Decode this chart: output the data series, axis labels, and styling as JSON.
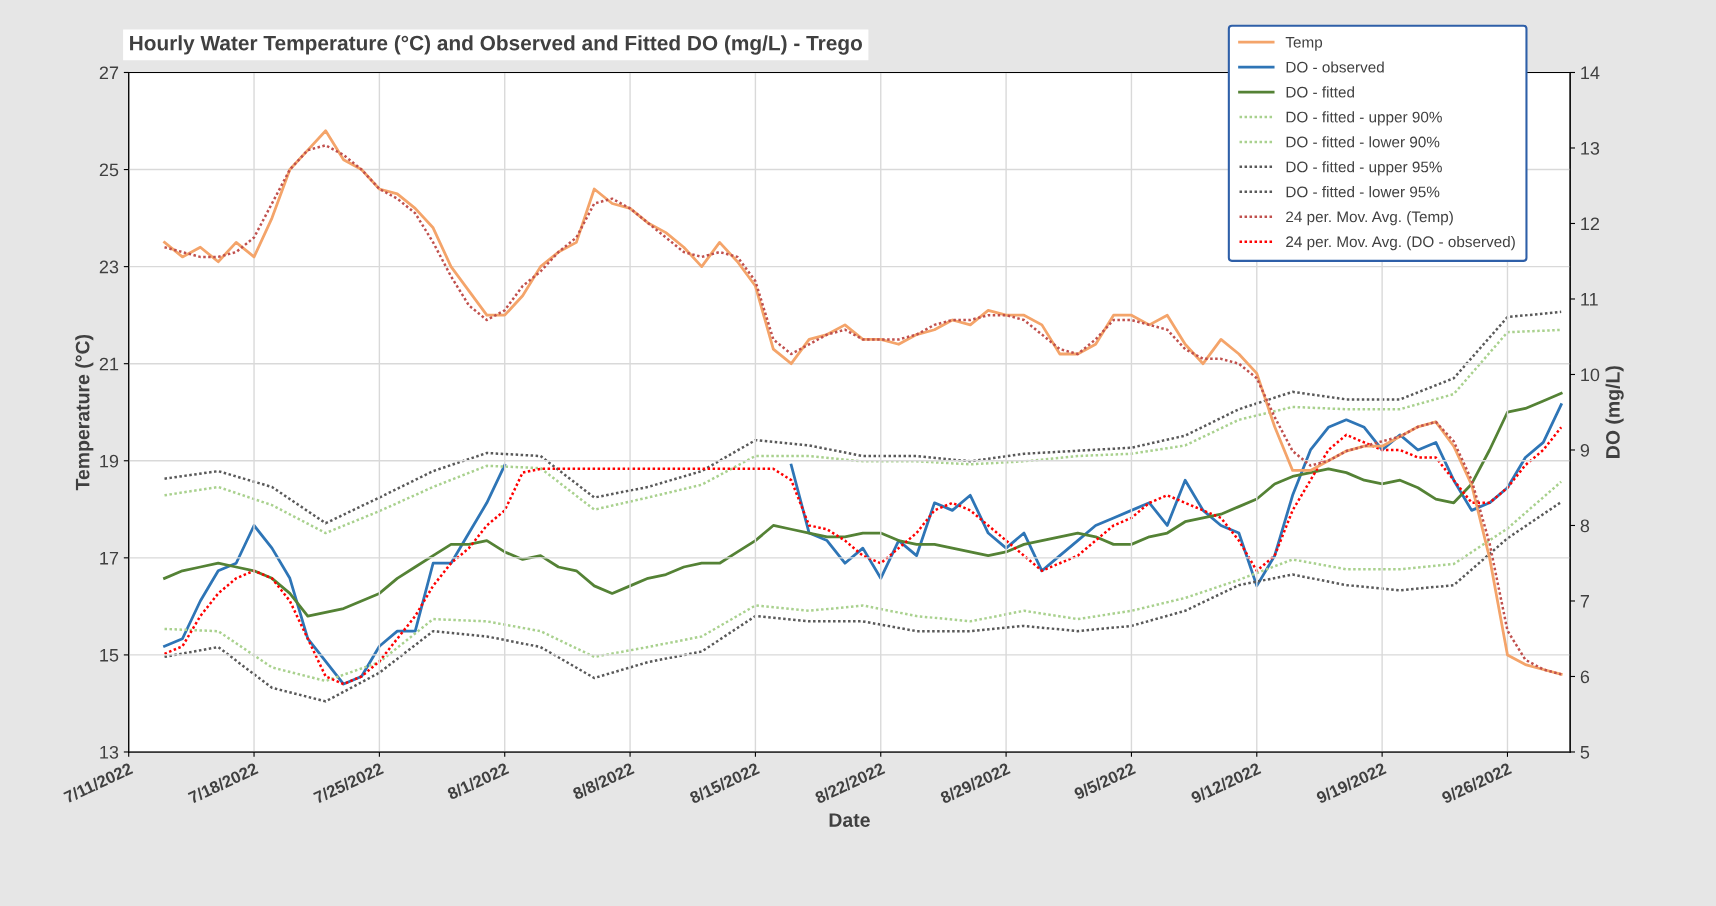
{
  "chart_data": {
    "type": "line",
    "title": "Hourly Water Temperature (°C) and Observed and Fitted DO (mg/L) - Trego",
    "xlabel": "Date",
    "ylabel": "Temperature (°C)",
    "y2label": "DO (mg/L)",
    "x": [
      "2022-07-13",
      "2022-07-14",
      "2022-07-15",
      "2022-07-16",
      "2022-07-17",
      "2022-07-18",
      "2022-07-19",
      "2022-07-20",
      "2022-07-21",
      "2022-07-22",
      "2022-07-23",
      "2022-07-24",
      "2022-07-25",
      "2022-07-26",
      "2022-07-27",
      "2022-07-28",
      "2022-07-29",
      "2022-07-30",
      "2022-07-31",
      "2022-08-01",
      "2022-08-02",
      "2022-08-03",
      "2022-08-04",
      "2022-08-05",
      "2022-08-06",
      "2022-08-07",
      "2022-08-08",
      "2022-08-09",
      "2022-08-10",
      "2022-08-11",
      "2022-08-12",
      "2022-08-13",
      "2022-08-14",
      "2022-08-15",
      "2022-08-16",
      "2022-08-17",
      "2022-08-18",
      "2022-08-19",
      "2022-08-20",
      "2022-08-21",
      "2022-08-22",
      "2022-08-23",
      "2022-08-24",
      "2022-08-25",
      "2022-08-26",
      "2022-08-27",
      "2022-08-28",
      "2022-08-29",
      "2022-08-30",
      "2022-08-31",
      "2022-09-01",
      "2022-09-02",
      "2022-09-03",
      "2022-09-04",
      "2022-09-05",
      "2022-09-06",
      "2022-09-07",
      "2022-09-08",
      "2022-09-09",
      "2022-09-10",
      "2022-09-11",
      "2022-09-12",
      "2022-09-13",
      "2022-09-14",
      "2022-09-15",
      "2022-09-16",
      "2022-09-17",
      "2022-09-18",
      "2022-09-19",
      "2022-09-20",
      "2022-09-21",
      "2022-09-22",
      "2022-09-23",
      "2022-09-24",
      "2022-09-25",
      "2022-09-26",
      "2022-09-27",
      "2022-09-28",
      "2022-09-29"
    ],
    "series": [
      {
        "name": "Temp",
        "color": "#f4a46a",
        "line_style": "solid",
        "values": [
          23.5,
          23.2,
          23.4,
          23.1,
          23.5,
          23.2,
          24.0,
          25.0,
          25.4,
          25.8,
          25.2,
          25.0,
          24.6,
          24.5,
          24.2,
          23.8,
          23.0,
          22.5,
          22.0,
          22.0,
          22.4,
          23.0,
          23.3,
          23.5,
          24.6,
          24.3,
          24.2,
          23.9,
          23.7,
          23.4,
          23.0,
          23.5,
          23.1,
          22.6,
          21.3,
          21.0,
          21.5,
          21.6,
          21.8,
          21.5,
          21.5,
          21.4,
          21.6,
          21.7,
          21.9,
          21.8,
          22.1,
          22.0,
          22.0,
          21.8,
          21.2,
          21.2,
          21.4,
          22.0,
          22.0,
          21.8,
          22.0,
          21.4,
          21.0,
          21.5,
          21.2,
          20.8,
          19.7,
          18.8,
          18.8,
          19.0,
          19.2,
          19.3,
          19.3,
          19.5,
          19.7,
          19.8,
          19.3,
          18.5,
          17.0,
          15.0,
          14.8,
          14.7,
          14.6
        ]
      },
      {
        "name": "DO - observed",
        "color": "#2e75b6",
        "line_style": "solid",
        "axis": "y2",
        "values": [
          6.4,
          6.5,
          7.0,
          7.4,
          7.5,
          8.0,
          7.7,
          7.3,
          6.5,
          6.2,
          5.9,
          6.0,
          6.4,
          6.6,
          6.6,
          7.5,
          7.5,
          7.9,
          8.3,
          8.8,
          null,
          null,
          null,
          null,
          null,
          null,
          null,
          null,
          null,
          null,
          null,
          null,
          null,
          null,
          null,
          8.8,
          7.9,
          7.8,
          7.5,
          7.7,
          7.3,
          7.8,
          7.6,
          8.3,
          8.2,
          8.4,
          7.9,
          7.7,
          7.9,
          7.4,
          7.6,
          7.8,
          8.0,
          8.1,
          8.2,
          8.3,
          8.0,
          8.6,
          8.2,
          8.0,
          7.9,
          7.2,
          7.6,
          8.4,
          9.0,
          9.3,
          9.4,
          9.3,
          9.0,
          9.2,
          9.0,
          9.1,
          8.6,
          8.2,
          8.3,
          8.5,
          8.9,
          9.1,
          9.6
        ]
      },
      {
        "name": "DO - fitted",
        "color": "#548235",
        "line_style": "solid",
        "axis": "y2",
        "values": [
          7.3,
          7.4,
          7.45,
          7.5,
          7.45,
          7.4,
          7.3,
          7.1,
          6.8,
          6.85,
          6.9,
          7.0,
          7.1,
          7.3,
          7.45,
          7.6,
          7.75,
          7.75,
          7.8,
          7.65,
          7.55,
          7.6,
          7.45,
          7.4,
          7.2,
          7.1,
          7.2,
          7.3,
          7.35,
          7.45,
          7.5,
          7.5,
          7.65,
          7.8,
          8.0,
          7.95,
          7.9,
          7.85,
          7.85,
          7.9,
          7.9,
          7.8,
          7.75,
          7.75,
          7.7,
          7.65,
          7.6,
          7.65,
          7.75,
          7.8,
          7.85,
          7.9,
          7.85,
          7.75,
          7.75,
          7.85,
          7.9,
          8.05,
          8.1,
          8.15,
          8.25,
          8.35,
          8.55,
          8.65,
          8.7,
          8.75,
          8.7,
          8.6,
          8.55,
          8.6,
          8.5,
          8.35,
          8.3,
          8.55,
          9.0,
          9.5,
          9.55,
          9.65,
          9.75
        ]
      },
      {
        "name": "DO - fitted - upper 90%",
        "color": "#a9d18e",
        "line_style": "dotted",
        "axis": "y2",
        "x": [
          "2022-07-13",
          "2022-07-16",
          "2022-07-19",
          "2022-07-22",
          "2022-07-25",
          "2022-07-28",
          "2022-07-31",
          "2022-08-03",
          "2022-08-06",
          "2022-08-09",
          "2022-08-12",
          "2022-08-15",
          "2022-08-18",
          "2022-08-21",
          "2022-08-24",
          "2022-08-27",
          "2022-08-30",
          "2022-09-02",
          "2022-09-05",
          "2022-09-08",
          "2022-09-11",
          "2022-09-14",
          "2022-09-17",
          "2022-09-20",
          "2022-09-23",
          "2022-09-26",
          "2022-09-29"
        ],
        "values": [
          8.4,
          8.51,
          8.27,
          7.9,
          8.19,
          8.51,
          8.79,
          8.76,
          8.21,
          8.37,
          8.54,
          8.92,
          8.92,
          8.85,
          8.85,
          8.81,
          8.85,
          8.92,
          8.95,
          9.06,
          9.4,
          9.57,
          9.54,
          9.54,
          9.74,
          10.56,
          10.59
        ]
      },
      {
        "name": "DO - fitted - lower 90%",
        "color": "#a9d18e",
        "line_style": "dotted",
        "axis": "y2",
        "x": [
          "2022-07-13",
          "2022-07-16",
          "2022-07-19",
          "2022-07-22",
          "2022-07-25",
          "2022-07-28",
          "2022-07-31",
          "2022-08-03",
          "2022-08-06",
          "2022-08-09",
          "2022-08-12",
          "2022-08-15",
          "2022-08-18",
          "2022-08-21",
          "2022-08-24",
          "2022-08-27",
          "2022-08-30",
          "2022-09-02",
          "2022-09-05",
          "2022-09-08",
          "2022-09-11",
          "2022-09-14",
          "2022-09-17",
          "2022-09-20",
          "2022-09-23",
          "2022-09-26",
          "2022-09-29"
        ],
        "values": [
          6.63,
          6.6,
          6.12,
          5.94,
          6.19,
          6.76,
          6.73,
          6.6,
          6.26,
          6.39,
          6.53,
          6.94,
          6.87,
          6.94,
          6.8,
          6.73,
          6.87,
          6.76,
          6.87,
          7.04,
          7.28,
          7.55,
          7.42,
          7.42,
          7.49,
          7.96,
          8.58
        ]
      },
      {
        "name": "DO - fitted - upper 95%",
        "color": "#595959",
        "line_style": "dotted",
        "axis": "y2",
        "x": [
          "2022-07-13",
          "2022-07-16",
          "2022-07-19",
          "2022-07-22",
          "2022-07-25",
          "2022-07-28",
          "2022-07-31",
          "2022-08-03",
          "2022-08-06",
          "2022-08-09",
          "2022-08-12",
          "2022-08-15",
          "2022-08-18",
          "2022-08-21",
          "2022-08-24",
          "2022-08-27",
          "2022-08-30",
          "2022-09-02",
          "2022-09-05",
          "2022-09-08",
          "2022-09-11",
          "2022-09-14",
          "2022-09-17",
          "2022-09-20",
          "2022-09-23",
          "2022-09-26",
          "2022-09-29"
        ],
        "values": [
          8.62,
          8.72,
          8.51,
          8.03,
          8.37,
          8.72,
          8.96,
          8.92,
          8.37,
          8.51,
          8.72,
          9.13,
          9.06,
          8.92,
          8.92,
          8.85,
          8.95,
          8.99,
          9.03,
          9.19,
          9.54,
          9.77,
          9.67,
          9.67,
          9.95,
          10.76,
          10.83
        ]
      },
      {
        "name": "DO - fitted - lower 95%",
        "color": "#595959",
        "line_style": "dotted",
        "axis": "y2",
        "x": [
          "2022-07-13",
          "2022-07-16",
          "2022-07-19",
          "2022-07-22",
          "2022-07-25",
          "2022-07-28",
          "2022-07-31",
          "2022-08-03",
          "2022-08-06",
          "2022-08-09",
          "2022-08-12",
          "2022-08-15",
          "2022-08-18",
          "2022-08-21",
          "2022-08-24",
          "2022-08-27",
          "2022-08-30",
          "2022-09-02",
          "2022-09-05",
          "2022-09-08",
          "2022-09-11",
          "2022-09-14",
          "2022-09-17",
          "2022-09-20",
          "2022-09-23",
          "2022-09-26",
          "2022-09-29"
        ],
        "values": [
          6.26,
          6.39,
          5.85,
          5.67,
          6.05,
          6.6,
          6.53,
          6.39,
          5.98,
          6.19,
          6.33,
          6.8,
          6.73,
          6.73,
          6.6,
          6.6,
          6.67,
          6.6,
          6.67,
          6.87,
          7.21,
          7.35,
          7.21,
          7.14,
          7.21,
          7.83,
          8.31
        ]
      },
      {
        "name": "24 per. Mov. Avg. (Temp)",
        "color": "#c0504d",
        "line_style": "dotted",
        "values": [
          23.4,
          23.3,
          23.2,
          23.2,
          23.3,
          23.6,
          24.3,
          25.0,
          25.4,
          25.5,
          25.3,
          25.0,
          24.6,
          24.4,
          24.1,
          23.5,
          22.8,
          22.2,
          21.9,
          22.1,
          22.6,
          22.9,
          23.3,
          23.6,
          24.3,
          24.4,
          24.2,
          23.9,
          23.6,
          23.3,
          23.2,
          23.3,
          23.2,
          22.7,
          21.5,
          21.2,
          21.4,
          21.6,
          21.7,
          21.5,
          21.5,
          21.5,
          21.6,
          21.8,
          21.9,
          21.9,
          22.0,
          22.0,
          21.9,
          21.6,
          21.3,
          21.2,
          21.5,
          21.9,
          21.9,
          21.8,
          21.7,
          21.3,
          21.1,
          21.1,
          21.0,
          20.7,
          19.9,
          19.2,
          18.9,
          19.0,
          19.2,
          19.3,
          19.4,
          19.5,
          19.7,
          19.8,
          19.4,
          18.6,
          17.3,
          15.5,
          14.9,
          14.7,
          14.6
        ]
      },
      {
        "name": "24 per. Mov. Avg. (DO - observed)",
        "color": "#ff0000",
        "line_style": "dotted",
        "axis": "y2",
        "values": [
          6.3,
          6.4,
          6.8,
          7.1,
          7.3,
          7.4,
          7.3,
          7.0,
          6.5,
          6.0,
          5.9,
          6.0,
          6.2,
          6.5,
          6.8,
          7.2,
          7.5,
          7.7,
          8.0,
          8.2,
          8.7,
          8.75,
          8.75,
          8.75,
          8.75,
          8.75,
          8.75,
          8.75,
          8.75,
          8.75,
          8.75,
          8.75,
          8.75,
          8.75,
          8.75,
          8.6,
          8.0,
          7.95,
          7.8,
          7.6,
          7.5,
          7.7,
          7.9,
          8.2,
          8.3,
          8.2,
          8.0,
          7.8,
          7.6,
          7.4,
          7.5,
          7.6,
          7.8,
          8.0,
          8.1,
          8.3,
          8.4,
          8.3,
          8.2,
          8.1,
          7.8,
          7.4,
          7.6,
          8.2,
          8.6,
          9.0,
          9.2,
          9.1,
          9.0,
          9.0,
          8.9,
          8.9,
          8.6,
          8.3,
          8.3,
          8.5,
          8.8,
          9.0,
          9.3
        ]
      }
    ],
    "xlim": [
      "2022-07-11",
      "2022-09-29T12:00"
    ],
    "xticks": [
      {
        "value": "2022-07-11",
        "label": "7/11/2022"
      },
      {
        "value": "2022-07-18",
        "label": "7/18/2022"
      },
      {
        "value": "2022-07-25",
        "label": "7/25/2022"
      },
      {
        "value": "2022-08-01",
        "label": "8/1/2022"
      },
      {
        "value": "2022-08-08",
        "label": "8/8/2022"
      },
      {
        "value": "2022-08-15",
        "label": "8/15/2022"
      },
      {
        "value": "2022-08-22",
        "label": "8/22/2022"
      },
      {
        "value": "2022-08-29",
        "label": "8/29/2022"
      },
      {
        "value": "2022-09-05",
        "label": "9/5/2022"
      },
      {
        "value": "2022-09-12",
        "label": "9/12/2022"
      },
      {
        "value": "2022-09-19",
        "label": "9/19/2022"
      },
      {
        "value": "2022-09-26",
        "label": "9/26/2022"
      }
    ],
    "ylim": [
      13,
      27
    ],
    "yticks": [
      13,
      15,
      17,
      19,
      21,
      23,
      25,
      27
    ],
    "y2lim": [
      5,
      14
    ],
    "y2ticks": [
      5,
      6,
      7,
      8,
      9,
      10,
      11,
      12,
      13,
      14
    ],
    "grid": true,
    "legend": "top right"
  }
}
